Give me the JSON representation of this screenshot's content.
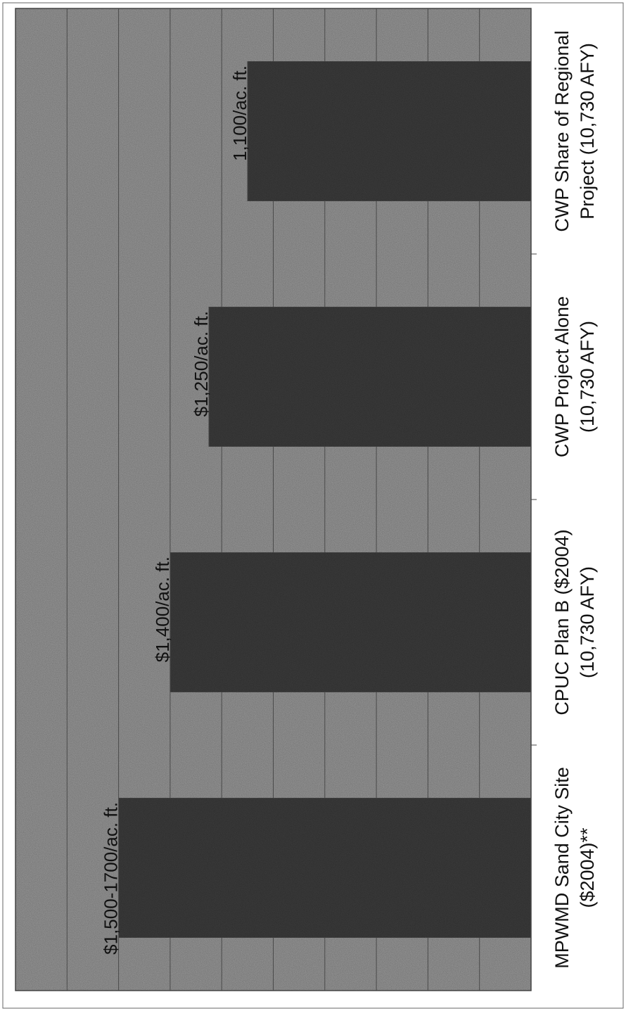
{
  "chart_data": {
    "type": "bar",
    "orientation": "rotated",
    "title": "",
    "xlabel": "",
    "ylabel": "",
    "grid": true,
    "legend": "none",
    "categories": [
      [
        "MPWMD Sand City Site",
        "($2004)**"
      ],
      [
        "CPUC Plan B ($2004)",
        "(10,730 AFY)"
      ],
      [
        "CWP Project Alone",
        "(10,730 AFY)"
      ],
      [
        "CWP Share of Regional",
        "Project (10,730 AFY)"
      ]
    ],
    "values": [
      1600,
      1400,
      1250,
      1100
    ],
    "value_labels": [
      "$1,500-1700/ac. ft.",
      "$1,400/ac. ft.",
      "$1,250/ac. ft.",
      "1,100/ac. ft."
    ],
    "ylim": [
      0,
      2000
    ],
    "colors": {
      "plot_background": "#9a9a9a",
      "bar": "#3e3e3e",
      "gridline": "#4a4a4a",
      "frame": "#444444",
      "text": "#111111"
    }
  }
}
